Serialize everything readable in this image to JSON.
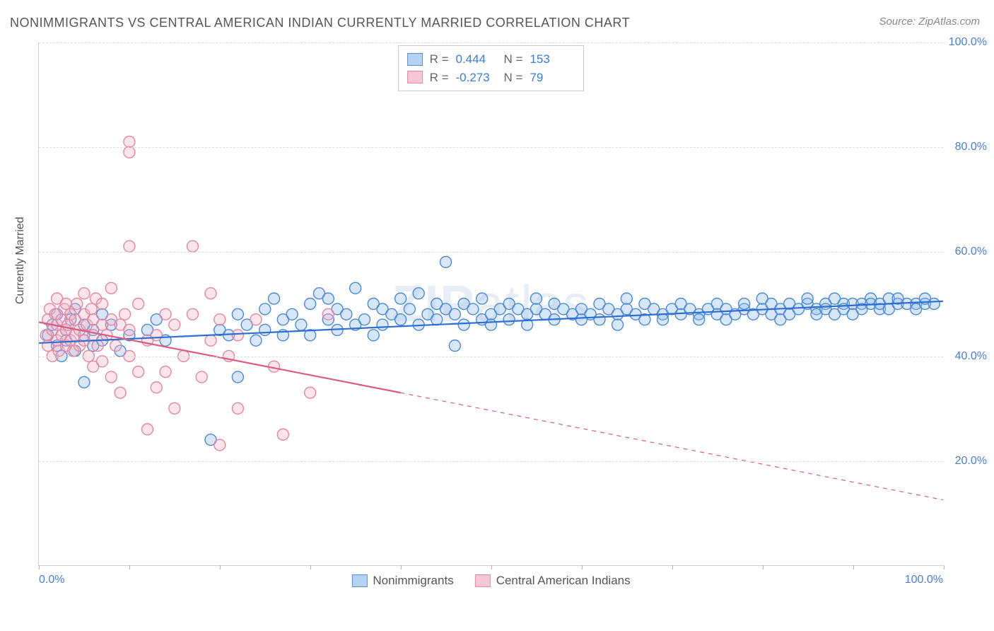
{
  "chart": {
    "type": "scatter",
    "title": "NONIMMIGRANTS VS CENTRAL AMERICAN INDIAN CURRENTLY MARRIED CORRELATION CHART",
    "source": "Source: ZipAtlas.com",
    "y_axis_label": "Currently Married",
    "watermark_bold": "ZIP",
    "watermark_light": "atlas",
    "title_color": "#555555",
    "title_fontsize": 18,
    "source_color": "#888888",
    "source_fontsize": 15,
    "background_color": "#ffffff",
    "grid_color": "#dcdcdc",
    "axis_color": "#d0d0d0",
    "tick_label_color": "#4a7ec9",
    "tick_fontsize": 16,
    "watermark_color": "#4a7ec9",
    "watermark_opacity": 0.12,
    "xlim": [
      0,
      100
    ],
    "ylim": [
      0,
      100
    ],
    "y_ticks": [
      20,
      40,
      60,
      80,
      100
    ],
    "y_tick_labels": [
      "20.0%",
      "40.0%",
      "60.0%",
      "80.0%",
      "100.0%"
    ],
    "x_tick_positions": [
      0,
      10,
      20,
      30,
      40,
      50,
      60,
      70,
      80,
      90,
      100
    ],
    "x_tick_labels": {
      "first": "0.0%",
      "last": "100.0%"
    },
    "marker_radius": 8,
    "marker_stroke_width": 1.4,
    "marker_fill_opacity": 0.35,
    "line_width": 2.2,
    "rn_box": {
      "border_color": "#c8c8c8",
      "rows": [
        {
          "swatch_fill": "#b6d2f3",
          "swatch_stroke": "#5a8fd6",
          "r_label": "R =",
          "r_value": "0.444",
          "n_label": "N =",
          "n_value": "153"
        },
        {
          "swatch_fill": "#f6c7d4",
          "swatch_stroke": "#e68aa4",
          "r_label": "R =",
          "r_value": "-0.273",
          "n_label": "N =",
          "n_value": "79"
        }
      ]
    },
    "bottom_legend": [
      {
        "swatch_fill": "#b6d2f3",
        "swatch_stroke": "#5a8fd6",
        "label": "Nonimmigrants"
      },
      {
        "swatch_fill": "#f6c7d4",
        "swatch_stroke": "#e68aa4",
        "label": "Central American Indians"
      }
    ],
    "series": [
      {
        "name": "Nonimmigrants",
        "color_stroke": "#4a89d6",
        "color_fill": "#8fb9e8",
        "trend_color": "#2d6fd0",
        "trend": {
          "y_at_x0": 42.5,
          "y_at_x100": 50.5
        },
        "points": [
          [
            1,
            44
          ],
          [
            1.5,
            46
          ],
          [
            2,
            42
          ],
          [
            2,
            48
          ],
          [
            2.5,
            40
          ],
          [
            3,
            45
          ],
          [
            3,
            43
          ],
          [
            3.5,
            47
          ],
          [
            4,
            41
          ],
          [
            4,
            49
          ],
          [
            5,
            44
          ],
          [
            5,
            46
          ],
          [
            5,
            35
          ],
          [
            6,
            45
          ],
          [
            6,
            42
          ],
          [
            7,
            43
          ],
          [
            7,
            48
          ],
          [
            8,
            46
          ],
          [
            9,
            41
          ],
          [
            10,
            44
          ],
          [
            12,
            45
          ],
          [
            13,
            47
          ],
          [
            14,
            43
          ],
          [
            19,
            24
          ],
          [
            20,
            45
          ],
          [
            21,
            44
          ],
          [
            22,
            48
          ],
          [
            22,
            36
          ],
          [
            23,
            46
          ],
          [
            24,
            43
          ],
          [
            25,
            49
          ],
          [
            25,
            45
          ],
          [
            26,
            51
          ],
          [
            27,
            47
          ],
          [
            27,
            44
          ],
          [
            28,
            48
          ],
          [
            29,
            46
          ],
          [
            30,
            50
          ],
          [
            30,
            44
          ],
          [
            31,
            52
          ],
          [
            32,
            47
          ],
          [
            32,
            51
          ],
          [
            33,
            49
          ],
          [
            33,
            45
          ],
          [
            34,
            48
          ],
          [
            35,
            46
          ],
          [
            35,
            53
          ],
          [
            36,
            47
          ],
          [
            37,
            50
          ],
          [
            37,
            44
          ],
          [
            38,
            49
          ],
          [
            38,
            46
          ],
          [
            39,
            48
          ],
          [
            40,
            47
          ],
          [
            40,
            51
          ],
          [
            41,
            49
          ],
          [
            42,
            46
          ],
          [
            42,
            52
          ],
          [
            43,
            48
          ],
          [
            44,
            50
          ],
          [
            44,
            47
          ],
          [
            45,
            49
          ],
          [
            45,
            58
          ],
          [
            46,
            48
          ],
          [
            46,
            42
          ],
          [
            47,
            50
          ],
          [
            47,
            46
          ],
          [
            48,
            49
          ],
          [
            49,
            47
          ],
          [
            49,
            51
          ],
          [
            50,
            48
          ],
          [
            50,
            46
          ],
          [
            51,
            49
          ],
          [
            52,
            50
          ],
          [
            52,
            47
          ],
          [
            53,
            49
          ],
          [
            54,
            48
          ],
          [
            54,
            46
          ],
          [
            55,
            49
          ],
          [
            55,
            51
          ],
          [
            56,
            48
          ],
          [
            57,
            47
          ],
          [
            57,
            50
          ],
          [
            58,
            49
          ],
          [
            59,
            48
          ],
          [
            60,
            47
          ],
          [
            60,
            49
          ],
          [
            61,
            48
          ],
          [
            62,
            50
          ],
          [
            62,
            47
          ],
          [
            63,
            49
          ],
          [
            64,
            48
          ],
          [
            64,
            46
          ],
          [
            65,
            49
          ],
          [
            65,
            51
          ],
          [
            66,
            48
          ],
          [
            67,
            47
          ],
          [
            67,
            50
          ],
          [
            68,
            49
          ],
          [
            69,
            48
          ],
          [
            69,
            47
          ],
          [
            70,
            49
          ],
          [
            71,
            48
          ],
          [
            71,
            50
          ],
          [
            72,
            49
          ],
          [
            73,
            48
          ],
          [
            73,
            47
          ],
          [
            74,
            49
          ],
          [
            75,
            50
          ],
          [
            75,
            48
          ],
          [
            76,
            49
          ],
          [
            76,
            47
          ],
          [
            77,
            48
          ],
          [
            78,
            49
          ],
          [
            78,
            50
          ],
          [
            79,
            48
          ],
          [
            80,
            49
          ],
          [
            80,
            51
          ],
          [
            81,
            48
          ],
          [
            81,
            50
          ],
          [
            82,
            49
          ],
          [
            82,
            47
          ],
          [
            83,
            50
          ],
          [
            83,
            48
          ],
          [
            84,
            49
          ],
          [
            85,
            50
          ],
          [
            85,
            51
          ],
          [
            86,
            49
          ],
          [
            86,
            48
          ],
          [
            87,
            50
          ],
          [
            87,
            49
          ],
          [
            88,
            48
          ],
          [
            88,
            51
          ],
          [
            89,
            50
          ],
          [
            89,
            49
          ],
          [
            90,
            50
          ],
          [
            90,
            48
          ],
          [
            91,
            50
          ],
          [
            91,
            49
          ],
          [
            92,
            51
          ],
          [
            92,
            50
          ],
          [
            93,
            49
          ],
          [
            93,
            50
          ],
          [
            94,
            51
          ],
          [
            94,
            49
          ],
          [
            95,
            50
          ],
          [
            95,
            51
          ],
          [
            96,
            50
          ],
          [
            97,
            50
          ],
          [
            97,
            49
          ],
          [
            98,
            50
          ],
          [
            98,
            51
          ],
          [
            99,
            50
          ]
        ]
      },
      {
        "name": "Central American Indians",
        "color_stroke": "#e286a1",
        "color_fill": "#f3b5c7",
        "trend_color": "#db5b82",
        "trend": {
          "y_at_x0": 46.5,
          "y_at_x40": 33,
          "y_at_x100": 12.5,
          "dashed_from_x": 40
        },
        "points": [
          [
            0.8,
            44
          ],
          [
            1,
            47
          ],
          [
            1,
            42
          ],
          [
            1.2,
            49
          ],
          [
            1.5,
            45
          ],
          [
            1.5,
            40
          ],
          [
            1.8,
            48
          ],
          [
            2,
            43
          ],
          [
            2,
            51
          ],
          [
            2,
            46
          ],
          [
            2.2,
            41
          ],
          [
            2.5,
            47
          ],
          [
            2.5,
            44
          ],
          [
            2.8,
            49
          ],
          [
            3,
            45
          ],
          [
            3,
            42
          ],
          [
            3,
            50
          ],
          [
            3.2,
            46
          ],
          [
            3.5,
            43
          ],
          [
            3.5,
            48
          ],
          [
            3.8,
            41
          ],
          [
            4,
            47
          ],
          [
            4,
            44
          ],
          [
            4.2,
            50
          ],
          [
            4.5,
            45
          ],
          [
            4.5,
            42
          ],
          [
            5,
            48
          ],
          [
            5,
            43
          ],
          [
            5,
            52
          ],
          [
            5.3,
            46
          ],
          [
            5.5,
            40
          ],
          [
            5.8,
            49
          ],
          [
            6,
            44
          ],
          [
            6,
            47
          ],
          [
            6,
            38
          ],
          [
            6.3,
            51
          ],
          [
            6.5,
            42
          ],
          [
            7,
            46
          ],
          [
            7,
            39
          ],
          [
            7,
            50
          ],
          [
            7.5,
            44
          ],
          [
            8,
            47
          ],
          [
            8,
            36
          ],
          [
            8,
            53
          ],
          [
            8.5,
            42
          ],
          [
            9,
            46
          ],
          [
            9,
            33
          ],
          [
            9.5,
            48
          ],
          [
            10,
            40
          ],
          [
            10,
            45
          ],
          [
            10,
            61
          ],
          [
            10,
            79
          ],
          [
            10,
            81
          ],
          [
            11,
            37
          ],
          [
            11,
            50
          ],
          [
            12,
            43
          ],
          [
            12,
            26
          ],
          [
            13,
            44
          ],
          [
            13,
            34
          ],
          [
            14,
            48
          ],
          [
            14,
            37
          ],
          [
            15,
            30
          ],
          [
            15,
            46
          ],
          [
            16,
            40
          ],
          [
            17,
            48
          ],
          [
            17,
            61
          ],
          [
            18,
            36
          ],
          [
            19,
            43
          ],
          [
            19,
            52
          ],
          [
            20,
            47
          ],
          [
            20,
            23
          ],
          [
            21,
            40
          ],
          [
            22,
            44
          ],
          [
            22,
            30
          ],
          [
            24,
            47
          ],
          [
            26,
            38
          ],
          [
            27,
            25
          ],
          [
            30,
            33
          ],
          [
            32,
            48
          ]
        ]
      }
    ]
  }
}
